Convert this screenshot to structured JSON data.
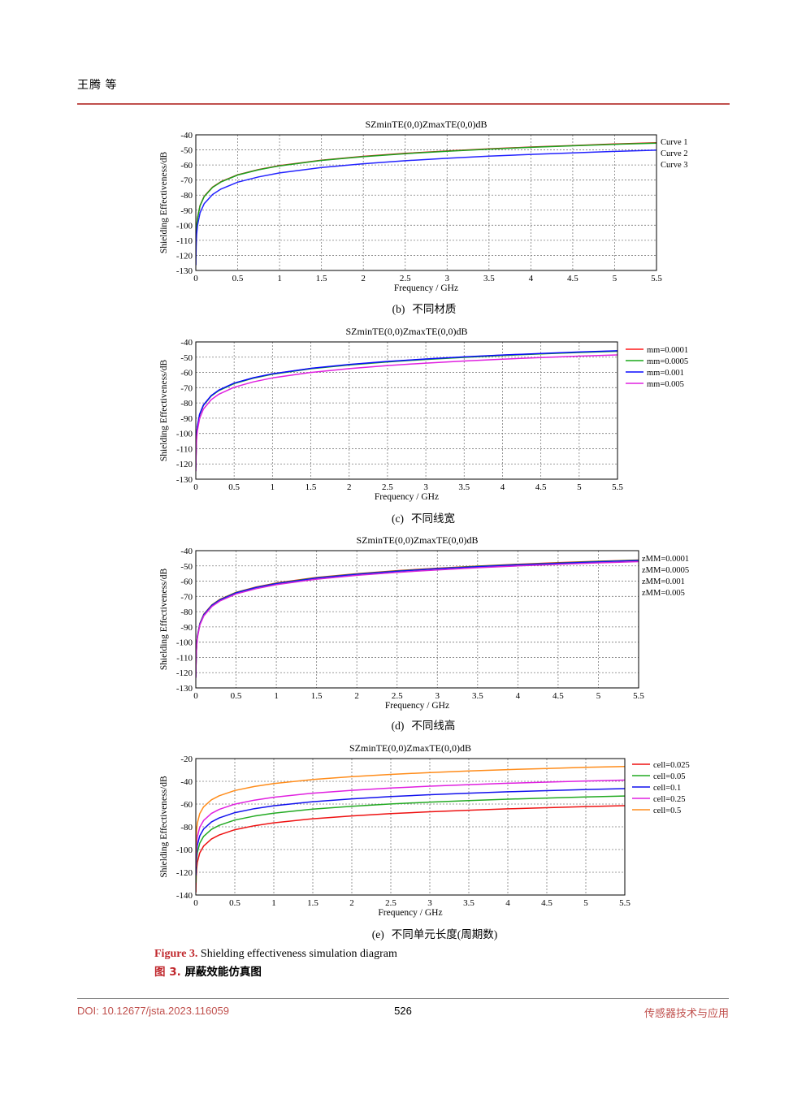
{
  "header": {
    "authors": "王腾 等"
  },
  "colors": {
    "accent": "#c0504d",
    "caption_label": "#c0282d"
  },
  "figures": [
    {
      "label": "(b)",
      "text": "不同材质"
    },
    {
      "label": "(c)",
      "text": "不同线宽"
    },
    {
      "label": "(d)",
      "text": "不同线高"
    },
    {
      "label": "(e)",
      "text": "不同单元长度(周期数)"
    }
  ],
  "figure_caption": {
    "en_label": "Figure 3.",
    "en_text": "Shielding effectiveness simulation diagram",
    "zh_label": "图 3.",
    "zh_text": "屏蔽效能仿真图"
  },
  "footer": {
    "doi": "DOI: 10.12677/jsta.2023.116059",
    "page": "526",
    "journal": "传感器技术与应用"
  },
  "chart_data": [
    {
      "type": "line",
      "title": "SZminTE(0,0)ZmaxTE(0,0)dB",
      "xlabel": "Frequency / GHz",
      "ylabel": "Shielding Effectiveness/dB",
      "xlim": [
        0,
        5.5
      ],
      "ylim": [
        -130,
        -40
      ],
      "xticks": [
        0,
        0.5,
        1,
        1.5,
        2,
        2.5,
        3,
        3.5,
        4,
        4.5,
        5,
        5.5
      ],
      "yticks": [
        -40,
        -50,
        -60,
        -70,
        -80,
        -90,
        -100,
        -110,
        -120,
        -130
      ],
      "grid": true,
      "legend_position": "right",
      "x": [
        0.001,
        0.002,
        0.005,
        0.01,
        0.02,
        0.05,
        0.1,
        0.2,
        0.3,
        0.5,
        0.75,
        1,
        1.5,
        2,
        2.5,
        3,
        3.5,
        4,
        4.5,
        5,
        5.5
      ],
      "series": [
        {
          "name": "Curve 1",
          "color": "#e01515",
          "values": [
            -121.6,
            -115.5,
            -107.3,
            -101.2,
            -95.1,
            -86.9,
            -80.8,
            -74.7,
            -71.1,
            -66.5,
            -63.0,
            -60.4,
            -56.8,
            -54.3,
            -52.3,
            -50.7,
            -49.3,
            -48.1,
            -47.1,
            -46.1,
            -45.3
          ]
        },
        {
          "name": "Curve 2",
          "color": "#1ca01c",
          "values": [
            -121.8,
            -115.7,
            -107.5,
            -101.4,
            -95.3,
            -87.1,
            -81.0,
            -74.9,
            -71.3,
            -66.7,
            -63.2,
            -60.6,
            -57.0,
            -54.5,
            -52.5,
            -50.9,
            -49.5,
            -48.3,
            -47.3,
            -46.3,
            -45.5
          ]
        },
        {
          "name": "Curve 3",
          "color": "#2222ff",
          "values": [
            -126.5,
            -120.4,
            -112.2,
            -106.1,
            -100.0,
            -91.8,
            -85.7,
            -79.6,
            -76.0,
            -71.4,
            -67.9,
            -65.3,
            -61.7,
            -59.2,
            -57.2,
            -55.6,
            -54.2,
            -53.0,
            -52.0,
            -51.0,
            -50.2
          ]
        }
      ]
    },
    {
      "type": "line",
      "title": "SZminTE(0,0)ZmaxTE(0,0)dB",
      "xlabel": "Frequency / GHz",
      "ylabel": "Shielding Effectiveness/dB",
      "xlim": [
        0,
        5.5
      ],
      "ylim": [
        -130,
        -40
      ],
      "xticks": [
        0,
        0.5,
        1,
        1.5,
        2,
        2.5,
        3,
        3.5,
        4,
        4.5,
        5,
        5.5
      ],
      "yticks": [
        -40,
        -50,
        -60,
        -70,
        -80,
        -90,
        -100,
        -110,
        -120,
        -130
      ],
      "grid": true,
      "legend_position": "right",
      "x": [
        0.001,
        0.002,
        0.005,
        0.01,
        0.02,
        0.05,
        0.1,
        0.2,
        0.3,
        0.5,
        0.75,
        1,
        1.5,
        2,
        2.5,
        3,
        3.5,
        4,
        4.5,
        5,
        5.5
      ],
      "series": [
        {
          "name": "mm=0.0001",
          "color": "#ff1a1a",
          "values": [
            -122.2,
            -116.1,
            -107.9,
            -101.8,
            -95.7,
            -87.5,
            -81.4,
            -75.3,
            -71.7,
            -67.1,
            -63.6,
            -61.0,
            -57.4,
            -54.9,
            -52.9,
            -51.3,
            -49.9,
            -48.7,
            -47.7,
            -46.7,
            -45.9
          ]
        },
        {
          "name": "mm=0.0005",
          "color": "#1aa81a",
          "values": [
            -122.4,
            -116.3,
            -108.1,
            -102.0,
            -95.9,
            -87.7,
            -81.6,
            -75.5,
            -71.9,
            -67.3,
            -63.8,
            -61.2,
            -57.6,
            -55.1,
            -53.1,
            -51.5,
            -50.1,
            -48.9,
            -47.9,
            -46.9,
            -46.1
          ]
        },
        {
          "name": "mm=0.001",
          "color": "#0a0aff",
          "values": [
            -122.1,
            -116.0,
            -107.8,
            -101.7,
            -95.6,
            -87.4,
            -81.3,
            -75.2,
            -71.6,
            -67.0,
            -63.5,
            -60.9,
            -57.3,
            -54.8,
            -52.8,
            -51.2,
            -49.8,
            -48.6,
            -47.6,
            -46.6,
            -45.8
          ]
        },
        {
          "name": "mm=0.005",
          "color": "#e020e0",
          "values": [
            -124.8,
            -118.7,
            -110.5,
            -104.4,
            -98.3,
            -90.1,
            -84.0,
            -77.9,
            -74.3,
            -69.7,
            -66.2,
            -63.6,
            -60.0,
            -57.5,
            -55.5,
            -53.9,
            -52.5,
            -51.3,
            -50.3,
            -49.3,
            -48.5
          ]
        }
      ]
    },
    {
      "type": "line",
      "title": "SZminTE(0,0)ZmaxTE(0,0)dB",
      "xlabel": "Frequency / GHz",
      "ylabel": "Shielding Effectiveness/dB",
      "xlim": [
        0,
        5.5
      ],
      "ylim": [
        -130,
        -40
      ],
      "xticks": [
        0,
        0.5,
        1,
        1.5,
        2,
        2.5,
        3,
        3.5,
        4,
        4.5,
        5,
        5.5
      ],
      "yticks": [
        -40,
        -50,
        -60,
        -70,
        -80,
        -90,
        -100,
        -110,
        -120,
        -130
      ],
      "grid": true,
      "legend_position": "right",
      "x": [
        0.001,
        0.002,
        0.005,
        0.01,
        0.02,
        0.05,
        0.1,
        0.2,
        0.3,
        0.5,
        0.75,
        1,
        1.5,
        2,
        2.5,
        3,
        3.5,
        4,
        4.5,
        5,
        5.5
      ],
      "series": [
        {
          "name": "zMM=0.0001",
          "color": "#ff1a1a",
          "values": [
            -122.4,
            -116.3,
            -108.1,
            -102.0,
            -95.9,
            -87.7,
            -81.6,
            -75.5,
            -71.9,
            -67.3,
            -63.8,
            -61.2,
            -57.6,
            -55.1,
            -53.1,
            -51.5,
            -50.1,
            -48.9,
            -47.9,
            -46.9,
            -46.1
          ]
        },
        {
          "name": "zMM=0.0005",
          "color": "#1aa81a",
          "values": [
            -122.6,
            -116.5,
            -108.3,
            -102.2,
            -96.1,
            -87.9,
            -81.8,
            -75.7,
            -72.1,
            -67.5,
            -64.0,
            -61.4,
            -57.8,
            -55.3,
            -53.3,
            -51.7,
            -50.3,
            -49.1,
            -48.1,
            -47.1,
            -46.3
          ]
        },
        {
          "name": "zMM=0.001",
          "color": "#1515f0",
          "values": [
            -122.8,
            -116.7,
            -108.5,
            -102.4,
            -96.3,
            -88.1,
            -82.0,
            -75.9,
            -72.3,
            -67.7,
            -64.2,
            -61.6,
            -58.0,
            -55.5,
            -53.5,
            -51.9,
            -50.5,
            -49.3,
            -48.3,
            -47.3,
            -46.5
          ]
        },
        {
          "name": "zMM=0.005",
          "color": "#d826d8",
          "values": [
            -123.5,
            -117.4,
            -109.2,
            -103.1,
            -97.0,
            -88.8,
            -82.7,
            -76.6,
            -73.0,
            -68.4,
            -64.9,
            -62.3,
            -58.7,
            -56.2,
            -54.2,
            -52.6,
            -51.2,
            -50.0,
            -49.0,
            -48.0,
            -47.2
          ]
        }
      ]
    },
    {
      "type": "line",
      "title": "SZminTE(0,0)ZmaxTE(0,0)dB",
      "xlabel": "Frequency / GHz",
      "ylabel": "Shielding Effectiveness/dB",
      "xlim": [
        0,
        5.5
      ],
      "ylim": [
        -140,
        -20
      ],
      "xticks": [
        0,
        0.5,
        1,
        1.5,
        2,
        2.5,
        3,
        3.5,
        4,
        4.5,
        5,
        5.5
      ],
      "yticks": [
        -20,
        -40,
        -60,
        -80,
        -100,
        -120,
        -140
      ],
      "grid": true,
      "legend_position": "right",
      "x": [
        0.001,
        0.002,
        0.005,
        0.01,
        0.02,
        0.05,
        0.1,
        0.2,
        0.3,
        0.5,
        0.75,
        1,
        1.5,
        2,
        2.5,
        3,
        3.5,
        4,
        4.5,
        5,
        5.5
      ],
      "series": [
        {
          "name": "cell=0.025",
          "color": "#ee1111",
          "values": [
            -137.7,
            -131.6,
            -123.4,
            -117.3,
            -111.2,
            -103.0,
            -96.9,
            -90.8,
            -87.2,
            -82.6,
            -79.1,
            -76.5,
            -72.9,
            -70.4,
            -68.4,
            -66.8,
            -65.4,
            -64.2,
            -63.2,
            -62.2,
            -61.4
          ]
        },
        {
          "name": "cell=0.05",
          "color": "#22aa22",
          "values": [
            -129.2,
            -123.1,
            -114.9,
            -108.8,
            -102.7,
            -94.5,
            -88.4,
            -82.3,
            -78.7,
            -74.1,
            -70.6,
            -68.0,
            -64.4,
            -61.9,
            -59.9,
            -58.3,
            -56.9,
            -55.7,
            -54.7,
            -53.7,
            -52.9
          ]
        },
        {
          "name": "cell=0.1",
          "color": "#1111ee",
          "values": [
            -122.7,
            -116.6,
            -108.4,
            -102.3,
            -96.2,
            -88.0,
            -81.9,
            -75.8,
            -72.2,
            -67.6,
            -64.1,
            -61.5,
            -57.9,
            -55.4,
            -53.4,
            -51.8,
            -50.4,
            -49.2,
            -48.2,
            -47.2,
            -46.4
          ]
        },
        {
          "name": "cell=0.25",
          "color": "#e020e0",
          "values": [
            -115.2,
            -109.1,
            -100.9,
            -94.8,
            -88.7,
            -80.5,
            -74.4,
            -68.3,
            -64.7,
            -60.1,
            -56.6,
            -54.0,
            -50.4,
            -47.9,
            -45.9,
            -44.3,
            -42.9,
            -41.7,
            -40.7,
            -39.7,
            -38.9
          ]
        },
        {
          "name": "cell=0.5",
          "color": "#ff8c1a",
          "values": [
            -103.2,
            -97.1,
            -88.9,
            -82.8,
            -76.7,
            -68.5,
            -62.4,
            -56.3,
            -52.7,
            -48.1,
            -44.6,
            -42.0,
            -38.4,
            -35.9,
            -33.9,
            -32.3,
            -30.9,
            -29.7,
            -28.7,
            -27.7,
            -26.9
          ]
        }
      ]
    }
  ]
}
